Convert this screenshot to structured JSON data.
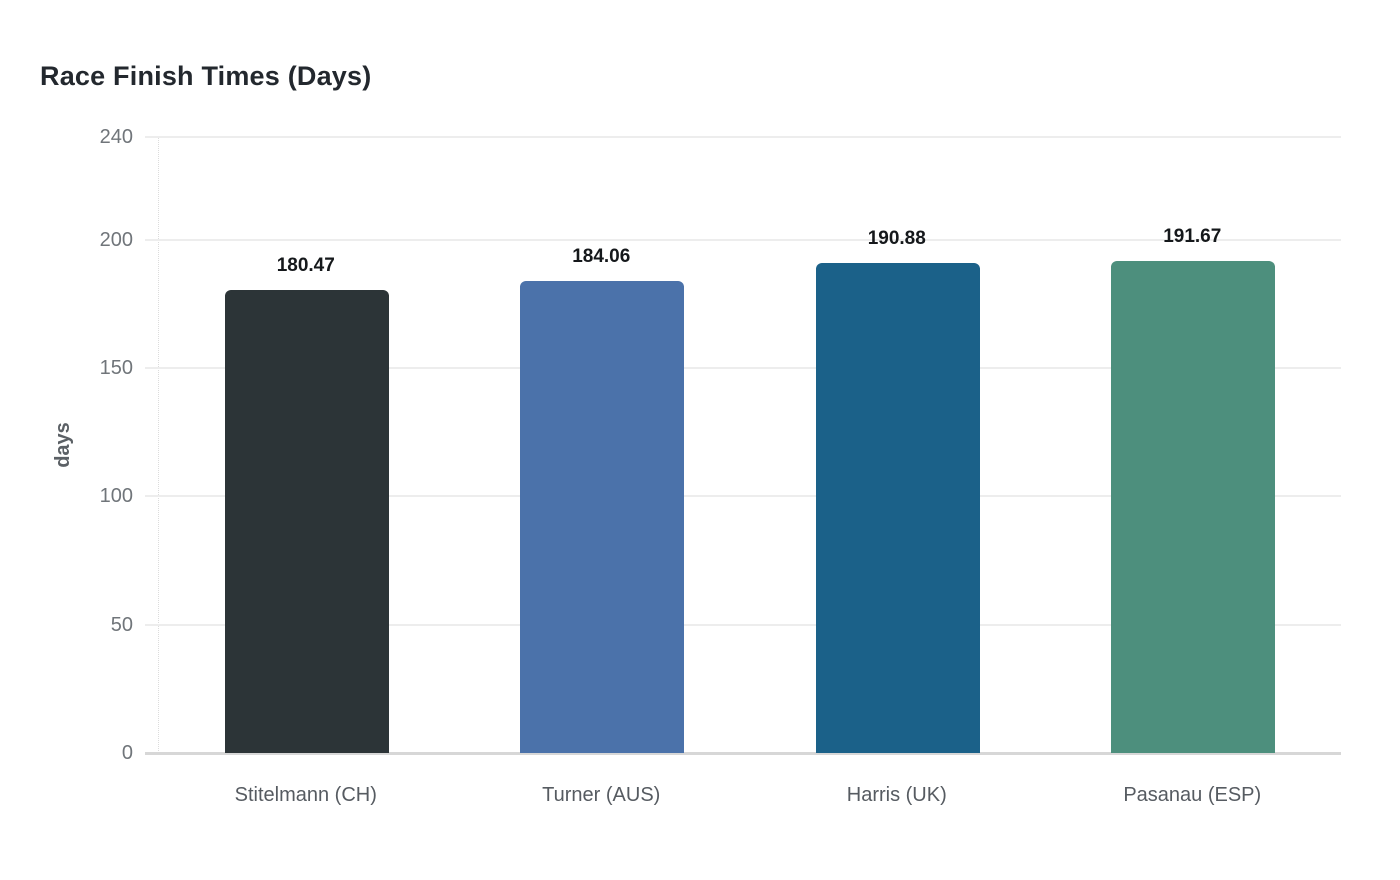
{
  "title": "Race Finish Times (Days)",
  "chart_data": {
    "type": "bar",
    "title": "Race Finish Times (Days)",
    "categories": [
      "Stitelmann (CH)",
      "Turner (AUS)",
      "Harris (UK)",
      "Pasanau (ESP)"
    ],
    "values": [
      180.47,
      184.06,
      190.88,
      191.67
    ],
    "value_labels": [
      "180.47",
      "184.06",
      "190.88",
      "191.67"
    ],
    "bar_colors": [
      "#2c3437",
      "#4b72aa",
      "#1b6189",
      "#4d8f7d"
    ],
    "xlabel": "",
    "ylabel": "days",
    "ylim": [
      0,
      240
    ],
    "yticks": [
      0,
      50,
      100,
      150,
      200,
      240
    ],
    "ytick_labels": [
      "0",
      "50",
      "100",
      "150",
      "200",
      "240"
    ],
    "grid": true,
    "legend": false,
    "background_color": "#ffffff",
    "gridline_color": "#ededed",
    "axis_line_color": "#d7d7d7",
    "tick_label_color": "#70757a",
    "category_label_color": "#565b61",
    "value_label_color": "#15181b",
    "title_color": "#23282e"
  }
}
